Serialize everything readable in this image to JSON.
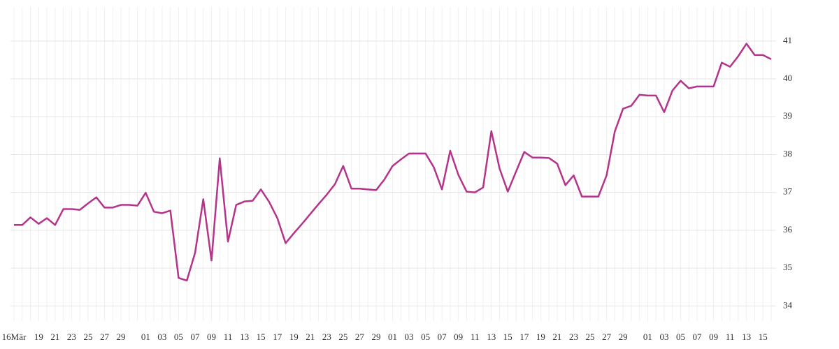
{
  "chart_data": {
    "type": "line",
    "categories": [
      "16Mär",
      null,
      null,
      "19",
      null,
      "21",
      null,
      "23",
      null,
      "25",
      null,
      "27",
      null,
      "29",
      null,
      null,
      "01",
      null,
      "03",
      null,
      "05",
      null,
      "07",
      null,
      "09",
      null,
      "11",
      null,
      "13",
      null,
      "15",
      null,
      "17",
      null,
      "19",
      null,
      "21",
      null,
      "23",
      null,
      "25",
      null,
      "27",
      null,
      "29",
      null,
      "01",
      null,
      "03",
      null,
      "05",
      null,
      "07",
      null,
      "09",
      null,
      "11",
      null,
      "13",
      null,
      "15",
      null,
      "17",
      null,
      "19",
      null,
      "21",
      null,
      "23",
      null,
      "25",
      null,
      "27",
      null,
      "29",
      null,
      null,
      "01",
      null,
      "03",
      null,
      "05",
      null,
      "07",
      null,
      "09",
      null,
      "11",
      null,
      "13",
      null,
      "15",
      null
    ],
    "series": [
      {
        "color": "#b5338a",
        "values": [
          36.14,
          36.14,
          36.34,
          36.17,
          36.32,
          36.14,
          36.56,
          36.56,
          36.54,
          36.71,
          36.87,
          36.6,
          36.6,
          36.67,
          36.67,
          36.65,
          36.99,
          36.49,
          36.45,
          36.52,
          34.74,
          34.67,
          35.4,
          36.82,
          35.2,
          37.9,
          35.7,
          36.67,
          36.76,
          36.78,
          37.08,
          36.75,
          36.32,
          35.66,
          35.92,
          36.17,
          36.43,
          36.69,
          36.94,
          37.22,
          37.7,
          37.1,
          37.1,
          37.08,
          37.06,
          37.34,
          37.7,
          37.87,
          38.03,
          38.03,
          38.03,
          37.67,
          37.08,
          38.1,
          37.46,
          37.02,
          37.0,
          37.13,
          38.62,
          37.63,
          37.02,
          37.55,
          38.07,
          37.92,
          37.92,
          37.91,
          37.76,
          37.19,
          37.45,
          36.89,
          36.89,
          36.89,
          37.45,
          38.61,
          39.21,
          39.29,
          39.58,
          39.56,
          39.56,
          39.12,
          39.69,
          39.95,
          39.75,
          39.8,
          39.8,
          39.8,
          40.43,
          40.32,
          40.6,
          40.93,
          40.63,
          40.63,
          40.52
        ]
      }
    ],
    "ylim": [
      33.6,
      41.9
    ],
    "yticks": [
      34,
      35,
      36,
      37,
      38,
      39,
      40,
      41
    ],
    "grid": true
  }
}
